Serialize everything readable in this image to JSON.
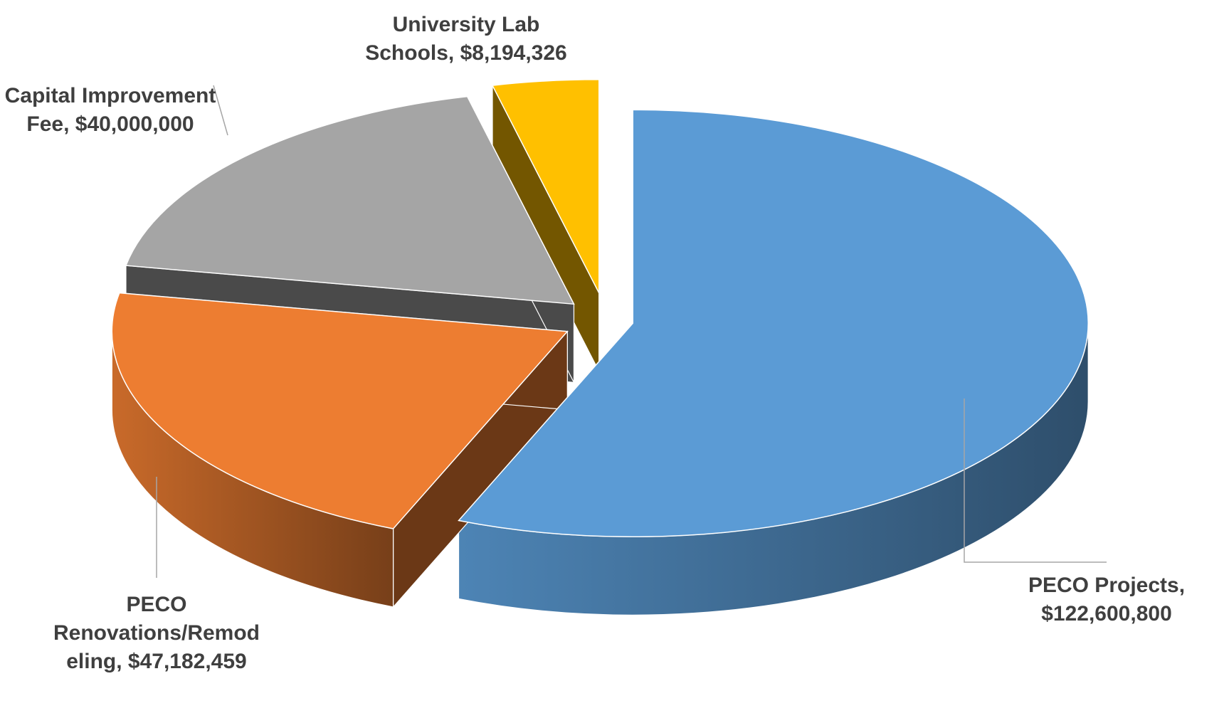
{
  "chart_data": {
    "type": "pie",
    "title": "",
    "exploded": true,
    "style": "3d",
    "legend": "none",
    "slices": [
      {
        "name": "PECO Projects",
        "value": 122600800,
        "color": "#5b9bd5",
        "label_lines": [
          "PECO Projects,",
          "$122,600,800"
        ]
      },
      {
        "name": "PECO Renovations/Remodeling",
        "value": 47182459,
        "color": "#ed7d31",
        "label_lines": [
          "PECO",
          "Renovations/Remod",
          "eling, $47,182,459"
        ]
      },
      {
        "name": "Capital Improvement Fee",
        "value": 40000000,
        "color": "#a5a5a5",
        "label_lines": [
          "Capital Improvement",
          "Fee, $40,000,000"
        ]
      },
      {
        "name": "University Lab Schools",
        "value": 8194326,
        "color": "#ffc000",
        "label_lines": [
          "University Lab",
          "Schools, $8,194,326"
        ]
      }
    ]
  }
}
